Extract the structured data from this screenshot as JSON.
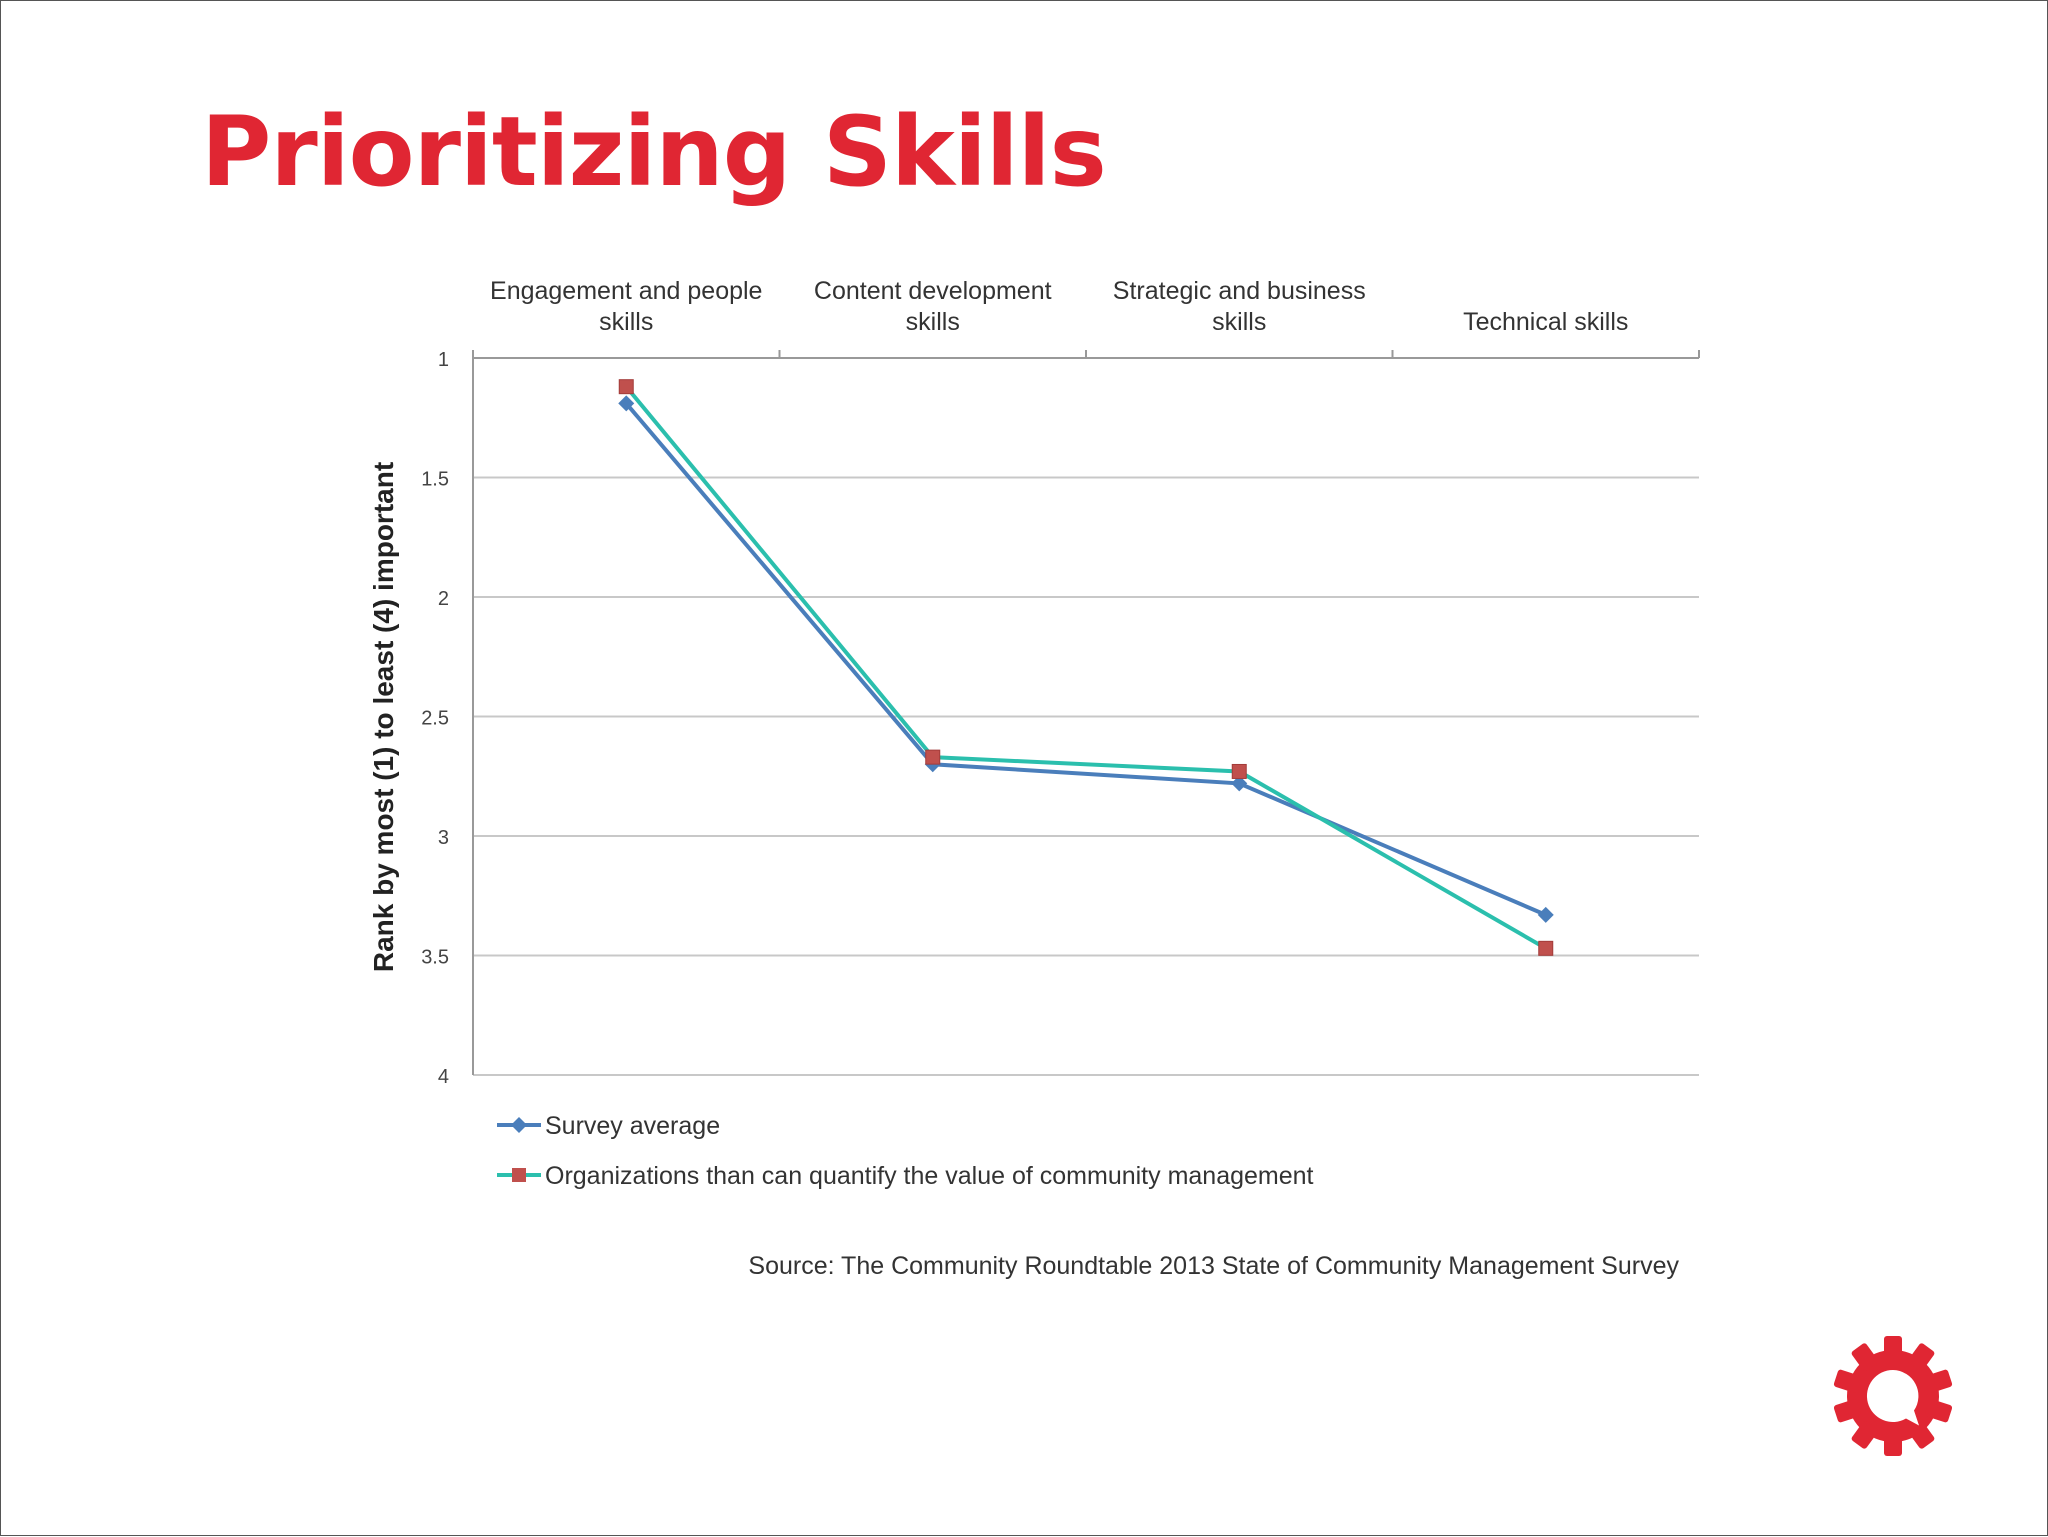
{
  "slide": {
    "title": "Prioritizing Skills",
    "source": "Source: The Community Roundtable 2013 State of Community Management Survey",
    "colors": {
      "title": "#e02633",
      "logo": "#e02633"
    },
    "logo_icon": "gear-speech-bubble-icon"
  },
  "chart_data": {
    "type": "line",
    "categories": [
      [
        "Engagement and people",
        "skills"
      ],
      [
        "Content development",
        "skills"
      ],
      [
        "Strategic and business",
        "skills"
      ],
      [
        "Technical skills"
      ]
    ],
    "ylabel": "Rank by most (1) to least (4) important",
    "ylim": [
      1,
      4
    ],
    "y_inverted": true,
    "yticks": [
      1,
      1.5,
      2,
      2.5,
      3,
      3.5,
      4
    ],
    "ytick_labels": [
      "1",
      "1.5",
      "2",
      "2.5",
      "3",
      "3.5",
      "4"
    ],
    "grid": true,
    "legend_position": "bottom-left",
    "series": [
      {
        "name": "Survey average",
        "values": [
          1.19,
          2.7,
          2.78,
          3.33
        ],
        "color": "#4a7ebb",
        "marker": "diamond"
      },
      {
        "name": "Organizations than can quantify the value of community management",
        "values": [
          1.12,
          2.67,
          2.73,
          3.47
        ],
        "color": "#2bbfad",
        "marker": "square",
        "marker_color": "#c0504d"
      }
    ]
  }
}
